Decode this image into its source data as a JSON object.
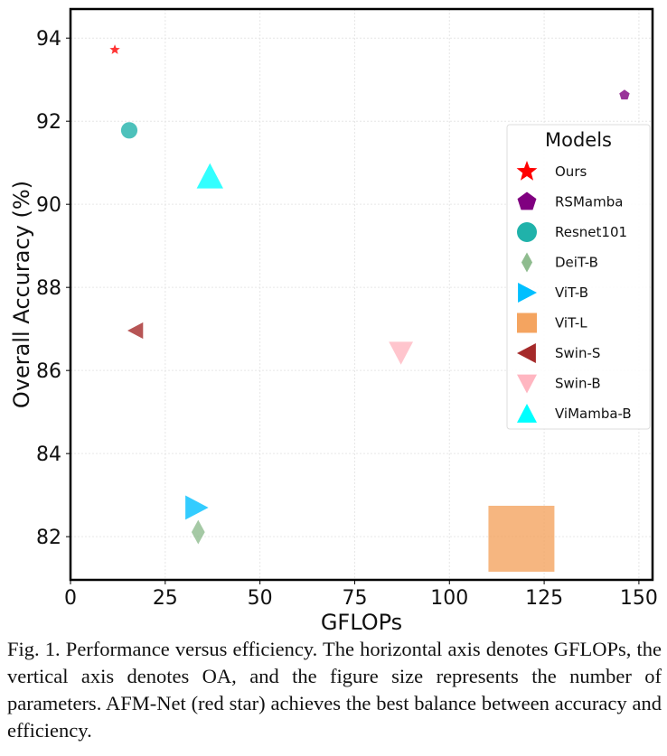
{
  "chart_data": {
    "type": "scatter",
    "xlabel": "GFLOPs",
    "ylabel": "Overall Accuracy (%)",
    "xlim": [
      0,
      153.6
    ],
    "ylim": [
      80.96,
      94.7
    ],
    "xticks": [
      0,
      25,
      50,
      75,
      100,
      125,
      150
    ],
    "yticks": [
      82,
      84,
      86,
      88,
      90,
      92,
      94
    ],
    "grid": true,
    "legend": {
      "title": "Models",
      "placement": "right"
    },
    "series": [
      {
        "name": "Ours",
        "x": 11.7,
        "y": 93.72,
        "size": 1,
        "marker": "star",
        "color": "#ff0000"
      },
      {
        "name": "RSMamba",
        "x": 146.2,
        "y": 92.63,
        "size": 1,
        "marker": "pentagon",
        "color": "#800080"
      },
      {
        "name": "Resnet101",
        "x": 15.5,
        "y": 91.78,
        "size": 2.3,
        "marker": "circle",
        "color": "#20b2aa"
      },
      {
        "name": "DeiT-B",
        "x": 33.7,
        "y": 82.11,
        "size": 5,
        "marker": "diamond",
        "color": "#8fbc8f"
      },
      {
        "name": "ViT-B",
        "x": 33.2,
        "y": 82.7,
        "size": 5,
        "marker": "triangle-right",
        "color": "#00bfff"
      },
      {
        "name": "ViT-L",
        "x": 119.0,
        "y": 81.95,
        "size": 37,
        "marker": "square",
        "color": "#f4a460"
      },
      {
        "name": "Swin-S",
        "x": 17.2,
        "y": 86.96,
        "size": 2.3,
        "marker": "triangle-left",
        "color": "#a52a2a"
      },
      {
        "name": "Swin-B",
        "x": 87.2,
        "y": 86.43,
        "size": 5,
        "marker": "triangle-down",
        "color": "#ffb6c1"
      },
      {
        "name": "ViMamba-B",
        "x": 36.8,
        "y": 90.67,
        "size": 6,
        "marker": "triangle-up",
        "color": "#00ffff"
      }
    ]
  },
  "caption": "Fig. 1. Performance versus efficiency. The horizontal axis denotes GFLOPs, the vertical axis denotes OA, and the figure size represents the number of parameters. AFM-Net (red star) achieves the best balance between accuracy and efficiency."
}
